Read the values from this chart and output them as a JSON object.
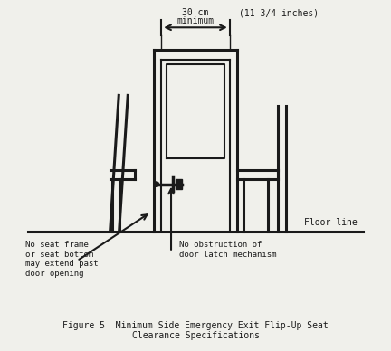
{
  "title_line1": "Figure 5  Minimum Side Emergency Exit Flip-Up Seat",
  "title_line2": "Clearance Specifications",
  "bg_color": "#f0f0eb",
  "line_color": "#1a1a1a",
  "dim_label_30cm_line1": "30 cm",
  "dim_label_30cm_line2": "minimum",
  "dim_label_inches": "(11 3/4 inches)",
  "label_floor": "Floor line",
  "label_left_line1": "No seat frame",
  "label_left_line2": "or seat bottom",
  "label_left_line3": "may extend past",
  "label_left_line4": "door opening",
  "label_right_line1": "No obstruction of",
  "label_right_line2": "door latch mechanism"
}
